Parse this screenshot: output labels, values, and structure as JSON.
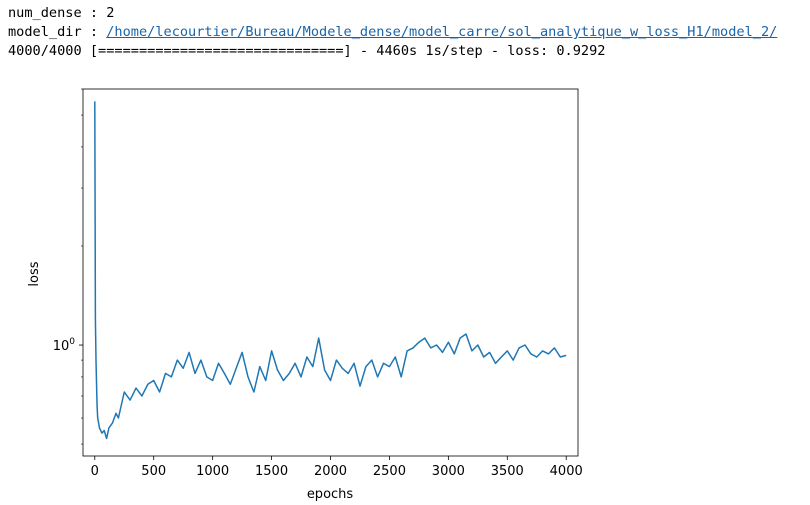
{
  "log": {
    "line1_prefix": "num_dense : ",
    "line1_value": "2",
    "line2_prefix": "model_dir : ",
    "line2_link": "/home/lecourtier/Bureau/Modele_dense/model_carre/sol_analytique_w_loss_H1/model_2/",
    "line3": "4000/4000 [==============================] - 4460s 1s/step - loss: 0.9292"
  },
  "chart_data": {
    "type": "line",
    "xlabel": "epochs",
    "ylabel": "loss",
    "xlim": [
      -100,
      4100
    ],
    "x_ticks": [
      0,
      500,
      1000,
      1500,
      2000,
      2500,
      3000,
      3500,
      4000
    ],
    "yscale": "log",
    "ylim": [
      0.46,
      6.0
    ],
    "y_tick_labels": [
      {
        "value": 1.0,
        "base": "10",
        "exp": "0"
      }
    ],
    "grid": false,
    "line_color": "#1f77b4",
    "series": [
      {
        "x": [
          0,
          5,
          10,
          15,
          20,
          25,
          40,
          60,
          80,
          100,
          120,
          150,
          180,
          200,
          250,
          300,
          350,
          400,
          450,
          500,
          550,
          600,
          650,
          700,
          750,
          800,
          850,
          900,
          950,
          1000,
          1050,
          1100,
          1150,
          1200,
          1250,
          1300,
          1350,
          1400,
          1450,
          1500,
          1550,
          1600,
          1650,
          1700,
          1750,
          1800,
          1850,
          1900,
          1950,
          2000,
          2050,
          2100,
          2150,
          2200,
          2250,
          2300,
          2350,
          2400,
          2450,
          2500,
          2550,
          2600,
          2650,
          2700,
          2750,
          2800,
          2850,
          2900,
          2950,
          3000,
          3050,
          3100,
          3150,
          3200,
          3250,
          3300,
          3350,
          3400,
          3450,
          3500,
          3550,
          3600,
          3650,
          3700,
          3750,
          3800,
          3850,
          3900,
          3950,
          4000
        ],
        "y": [
          5.5,
          1.2,
          0.9,
          0.75,
          0.65,
          0.6,
          0.56,
          0.54,
          0.55,
          0.52,
          0.56,
          0.58,
          0.62,
          0.6,
          0.72,
          0.68,
          0.74,
          0.7,
          0.76,
          0.78,
          0.72,
          0.82,
          0.8,
          0.9,
          0.85,
          0.95,
          0.82,
          0.9,
          0.8,
          0.78,
          0.88,
          0.82,
          0.76,
          0.85,
          0.95,
          0.8,
          0.72,
          0.86,
          0.78,
          0.96,
          0.84,
          0.78,
          0.82,
          0.88,
          0.8,
          0.92,
          0.86,
          1.05,
          0.84,
          0.78,
          0.9,
          0.85,
          0.82,
          0.88,
          0.75,
          0.86,
          0.9,
          0.8,
          0.88,
          0.86,
          0.92,
          0.8,
          0.96,
          0.98,
          1.02,
          1.05,
          0.98,
          1.0,
          0.95,
          1.02,
          0.94,
          1.05,
          1.08,
          0.96,
          1.0,
          0.92,
          0.95,
          0.88,
          0.92,
          0.96,
          0.9,
          0.98,
          1.0,
          0.94,
          0.92,
          0.96,
          0.94,
          0.98,
          0.92,
          0.93
        ]
      }
    ]
  }
}
